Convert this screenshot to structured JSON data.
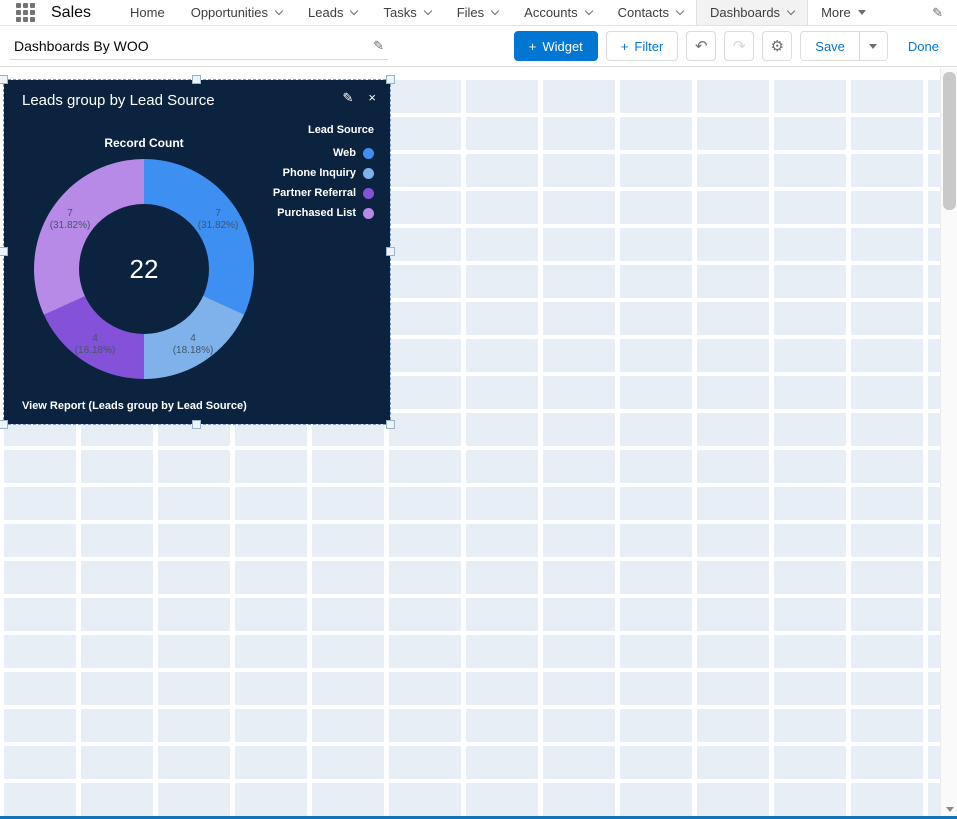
{
  "nav": {
    "app_name": "Sales",
    "items": [
      {
        "label": "Home"
      },
      {
        "label": "Opportunities"
      },
      {
        "label": "Leads"
      },
      {
        "label": "Tasks"
      },
      {
        "label": "Files"
      },
      {
        "label": "Accounts"
      },
      {
        "label": "Contacts"
      },
      {
        "label": "Dashboards"
      },
      {
        "label": "More"
      }
    ],
    "active_item": "Dashboards"
  },
  "toolbar": {
    "dashboard_title": "Dashboards By WOO",
    "widget_button": "Widget",
    "filter_button": "Filter",
    "save_button": "Save",
    "done_button": "Done"
  },
  "widget": {
    "title": "Leads group by Lead Source",
    "view_report": "View Report (Leads group by Lead Source)"
  },
  "chart_data": {
    "type": "pie",
    "donut": true,
    "title": "Record Count",
    "legend_title": "Lead Source",
    "legend_position": "right",
    "total": 22,
    "series": [
      {
        "label": "Web",
        "value": 7,
        "pct": "(31.82%)",
        "color": "#3e8ff2"
      },
      {
        "label": "Phone Inquiry",
        "value": 4,
        "pct": "(18.18%)",
        "color": "#7fb2ea"
      },
      {
        "label": "Partner Referral",
        "value": 4,
        "pct": "(18.18%)",
        "color": "#8352d9"
      },
      {
        "label": "Purchased List",
        "value": 7,
        "pct": "(31.82%)",
        "color": "#b78ae8"
      }
    ]
  },
  "theme": {
    "accent_blue": "#0176d3",
    "widget_background": "#0c2340",
    "grid_cell": "#e8eef5"
  }
}
